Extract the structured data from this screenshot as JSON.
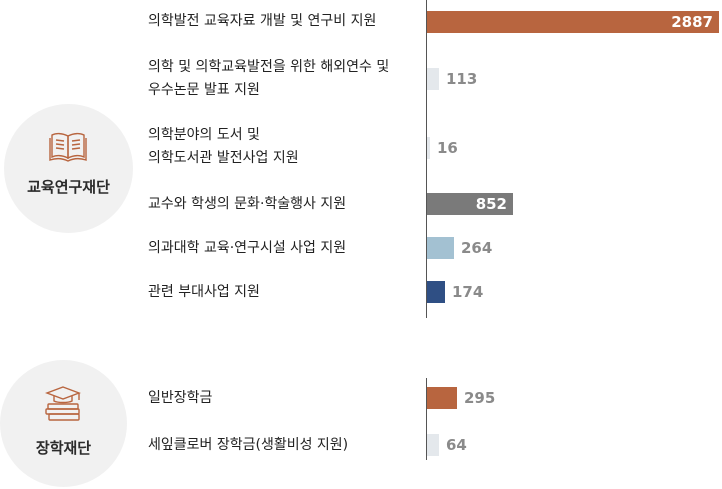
{
  "groups": [
    {
      "name": "교육연구재단",
      "icon": "book-icon"
    },
    {
      "name": "장학재단",
      "icon": "graduation-books-icon"
    }
  ],
  "chart_data": {
    "type": "bar",
    "orientation": "horizontal",
    "categories": [
      "의학발전 교육자료 개발 및 연구비 지원",
      "의학 및 의학교육발전을 위한 해외연수 및\n우수논문 발표 지원",
      "의학분야의 도서 및\n의학도서관 발전사업 지원",
      "교수와 학생의 문화·학술행사 지원",
      "의과대학 교육·연구시설 사업 지원",
      "관련 부대사업 지원",
      "일반장학금",
      "세잎클로버 장학금(생활비성 지원)"
    ],
    "values": [
      2887,
      113,
      16,
      852,
      264,
      174,
      295,
      64
    ],
    "value_labels": [
      "2887",
      "113",
      "16",
      "852",
      "264",
      "174",
      "295",
      "64"
    ],
    "group_of": [
      "교육연구재단",
      "교육연구재단",
      "교육연구재단",
      "교육연구재단",
      "교육연구재단",
      "교육연구재단",
      "장학재단",
      "장학재단"
    ],
    "bar_colors": [
      "#b8653f",
      "#e4e8ec",
      "#e4e8ec",
      "#7a7a7a",
      "#a3c1d2",
      "#2f4f84",
      "#b8653f",
      "#e4e8ec"
    ],
    "xlim": [
      0,
      2887
    ],
    "grid": false,
    "legend": "none"
  }
}
